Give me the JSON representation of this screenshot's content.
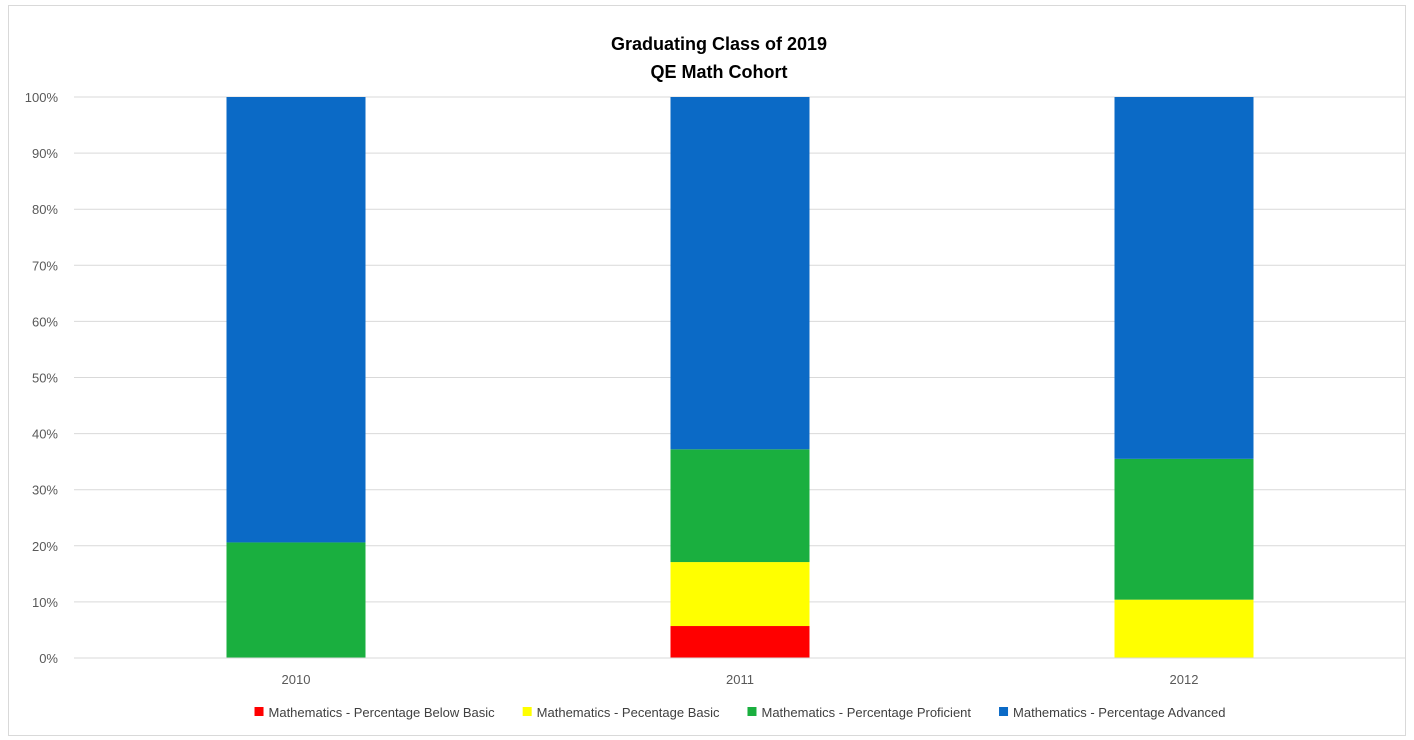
{
  "chart_data": {
    "type": "bar",
    "stacked": true,
    "title_lines": [
      "Graduating Class of 2019",
      "QE Math Cohort"
    ],
    "categories": [
      "2010",
      "2011",
      "2012"
    ],
    "series": [
      {
        "name": "Mathematics - Percentage Below Basic",
        "color": "#ff0000",
        "values": [
          0,
          5.7,
          0
        ]
      },
      {
        "name": "Mathematics - Pecentage Basic",
        "color": "#ffff00",
        "values": [
          0,
          11.4,
          10.4
        ]
      },
      {
        "name": "Mathematics - Percentage Proficient",
        "color": "#1aaf3f",
        "values": [
          20.6,
          20.1,
          25.1
        ]
      },
      {
        "name": "Mathematics - Percentage Advanced",
        "color": "#0b6ac6",
        "values": [
          79.4,
          62.8,
          64.5
        ]
      }
    ],
    "y_ticks": [
      "0%",
      "10%",
      "20%",
      "30%",
      "40%",
      "50%",
      "60%",
      "70%",
      "80%",
      "90%",
      "100%"
    ],
    "ylim": [
      0,
      100
    ],
    "grid": true,
    "legend_position": "bottom"
  }
}
